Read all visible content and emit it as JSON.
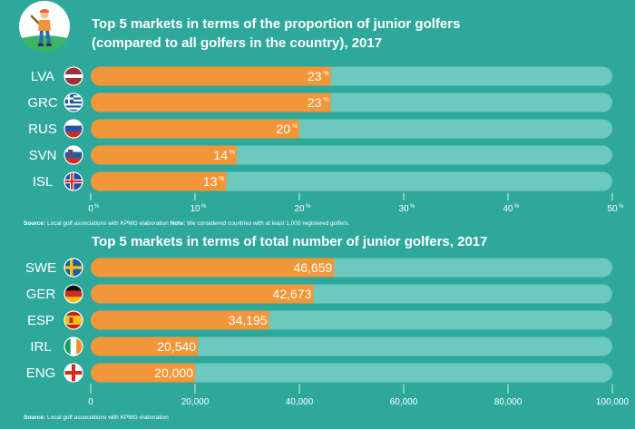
{
  "colors": {
    "background": "#2fa89c",
    "track": "#6bc9bd",
    "bar": "#f2963a",
    "text": "#ffffff"
  },
  "logo": {
    "icon": "golfer-icon"
  },
  "chart_data": [
    {
      "type": "bar",
      "orientation": "horizontal",
      "title_line1": "Top 5 markets in terms of the proportion of junior golfers",
      "title_line2": "(compared to all golfers in the country), 2017",
      "categories": [
        "LVA",
        "GRC",
        "RUS",
        "SVN",
        "ISL"
      ],
      "values": [
        23,
        23,
        20,
        14,
        13
      ],
      "value_unit": "%",
      "xlim": [
        0,
        50
      ],
      "ticks": [
        0,
        10,
        20,
        30,
        40,
        50
      ],
      "tick_unit": "%",
      "flags": [
        "flag-latvia-icon",
        "flag-greece-icon",
        "flag-russia-icon",
        "flag-slovenia-icon",
        "flag-iceland-icon"
      ],
      "source_label": "Source:",
      "source_text": " Local golf associations with KPMG elaboration ",
      "note_label": "Note:",
      "note_text": " We considered countries with at least 1,000 registered golfers."
    },
    {
      "type": "bar",
      "orientation": "horizontal",
      "title": "Top 5 markets in terms of total number of junior golfers, 2017",
      "categories": [
        "SWE",
        "GER",
        "ESP",
        "IRL",
        "ENG"
      ],
      "values": [
        46659,
        42673,
        34195,
        20540,
        20000
      ],
      "value_labels": [
        "46,659",
        "42,673",
        "34,195",
        "20,540",
        "20,000"
      ],
      "xlim": [
        0,
        100000
      ],
      "ticks": [
        0,
        20000,
        40000,
        60000,
        80000,
        100000
      ],
      "tick_labels": [
        "0",
        "20,000",
        "40,000",
        "60,000",
        "80,000",
        "100,000"
      ],
      "flags": [
        "flag-sweden-icon",
        "flag-germany-icon",
        "flag-spain-icon",
        "flag-ireland-icon",
        "flag-england-icon"
      ],
      "source_label": "Source:",
      "source_text": " Local golf associations with KPMG elaboration"
    }
  ]
}
